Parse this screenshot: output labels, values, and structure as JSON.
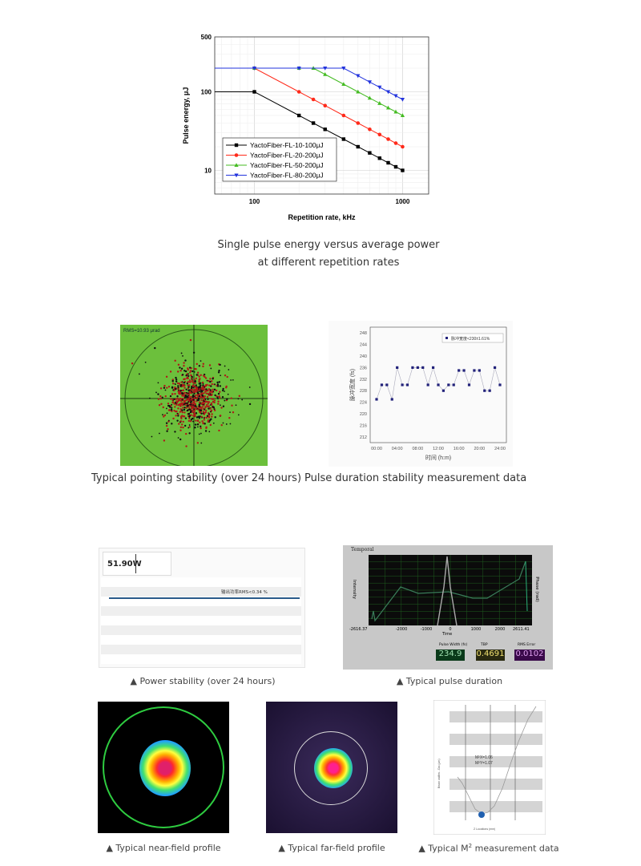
{
  "figures": {
    "energy_caption_line1": "Single pulse energy versus average power",
    "energy_caption_line2": "at different repetition rates",
    "pointing_caption": "Typical pointing stability (over 24 hours)",
    "pointing_label": "RMS=10.93 μrad",
    "duration_stability_caption": "Pulse duration stability measurement data",
    "power_caption": "▲ Power stability (over 24 hours)",
    "power_readout": "51.90W",
    "power_legend": "输出功率RMS<0.34 %",
    "pulse_caption": "▲ Typical pulse duration",
    "pulse_panel": {
      "title": "Temporal",
      "x_axis": "Time",
      "y_left": "Intensity",
      "y_right": "Phase (rad)",
      "x_left": "-2616.37",
      "x_right": "2611.41",
      "ticks": [
        "-2000",
        "-1000",
        "0",
        "1000",
        "2000"
      ],
      "pulse_width_label": "Pulse Width (fs)",
      "pulse_width": "234.9",
      "tbp_label": "TBP",
      "tbp": "0.4691",
      "rms_label": "RMS Error",
      "rms": "0.0102"
    },
    "near_field_caption": "▲ Typical near-field profile",
    "far_field_caption": "▲ Typical far-field profile",
    "m2_caption_pre": "▲ Typical M",
    "m2_caption_sup": "2",
    "m2_caption_post": " measurement data",
    "m2_x": "M²X=1.06",
    "m2_y": "M²Y=1.07",
    "m2_xlabel": "Z Locations (mm)",
    "m2_ylabel": "Beam widths - Dia (μm)"
  },
  "colors": {
    "near_field_ring": "#2ecc40",
    "pointing_bg": "#6cc03c"
  },
  "chart_data": [
    {
      "type": "line",
      "xlabel": "Repetition rate, kHz",
      "ylabel": "Pulse energy, μJ",
      "xscale": "log",
      "yscale": "log",
      "xlim": [
        54,
        1500
      ],
      "ylim": [
        5,
        500
      ],
      "xticks": [
        100,
        1000
      ],
      "yticks": [
        10,
        100,
        500
      ],
      "grid": true,
      "legend": "bottom-left",
      "series": [
        {
          "name": "YactoFiber-FL-10-100μJ",
          "color": "#000000",
          "marker": "square",
          "x": [
            100,
            200,
            250,
            300,
            400,
            500,
            600,
            700,
            800,
            900,
            1000
          ],
          "y": [
            100,
            50,
            40,
            33.3,
            25,
            20,
            16.7,
            14.3,
            12.5,
            11.1,
            10
          ]
        },
        {
          "name": "YactoFiber-FL-20-200μJ",
          "color": "#ff2a1a",
          "marker": "circle",
          "x": [
            100,
            200,
            250,
            300,
            400,
            500,
            600,
            700,
            800,
            900,
            1000
          ],
          "y": [
            200,
            100,
            80,
            66.7,
            50,
            40,
            33.3,
            28.6,
            25,
            22.2,
            20
          ]
        },
        {
          "name": "YactoFiber-FL-50-200μJ",
          "color": "#44bb22",
          "marker": "triangle-up",
          "x": [
            100,
            200,
            250,
            300,
            400,
            500,
            600,
            700,
            800,
            900,
            1000
          ],
          "y": [
            200,
            200,
            200,
            166.7,
            125,
            100,
            83.3,
            71.4,
            62.5,
            55.6,
            50
          ]
        },
        {
          "name": "YactoFiber-FL-80-200μJ",
          "color": "#2233dd",
          "marker": "triangle-down",
          "x": [
            100,
            200,
            300,
            400,
            500,
            600,
            700,
            800,
            900,
            1000
          ],
          "y": [
            200,
            200,
            200,
            200,
            160,
            133.3,
            114.3,
            100,
            88.9,
            80
          ]
        }
      ]
    },
    {
      "type": "line",
      "xlabel": "时间 (h:m)",
      "ylabel": "脉冲宽度 (fs)",
      "ylim": [
        210,
        250
      ],
      "yticks": [
        212,
        216,
        220,
        224,
        228,
        232,
        236,
        240,
        244,
        248
      ],
      "xticks": [
        "00:00",
        "04:00",
        "08:00",
        "12:00",
        "16:00",
        "20:00",
        "24:00"
      ],
      "legend": "top-right",
      "series": [
        {
          "name": "脉冲宽度<230±1.61%",
          "color": "#22227a",
          "x": [
            0,
            1,
            2,
            3,
            4,
            5,
            6,
            7,
            8,
            9,
            10,
            11,
            12,
            13,
            14,
            15,
            16,
            17,
            18,
            19,
            20,
            21,
            22,
            23,
            24
          ],
          "y": [
            225,
            230,
            230,
            225,
            236,
            230,
            230,
            236,
            236,
            236,
            230,
            236,
            230,
            228,
            230,
            230,
            235,
            235,
            230,
            235,
            235,
            228,
            228,
            236,
            230
          ]
        }
      ]
    }
  ]
}
